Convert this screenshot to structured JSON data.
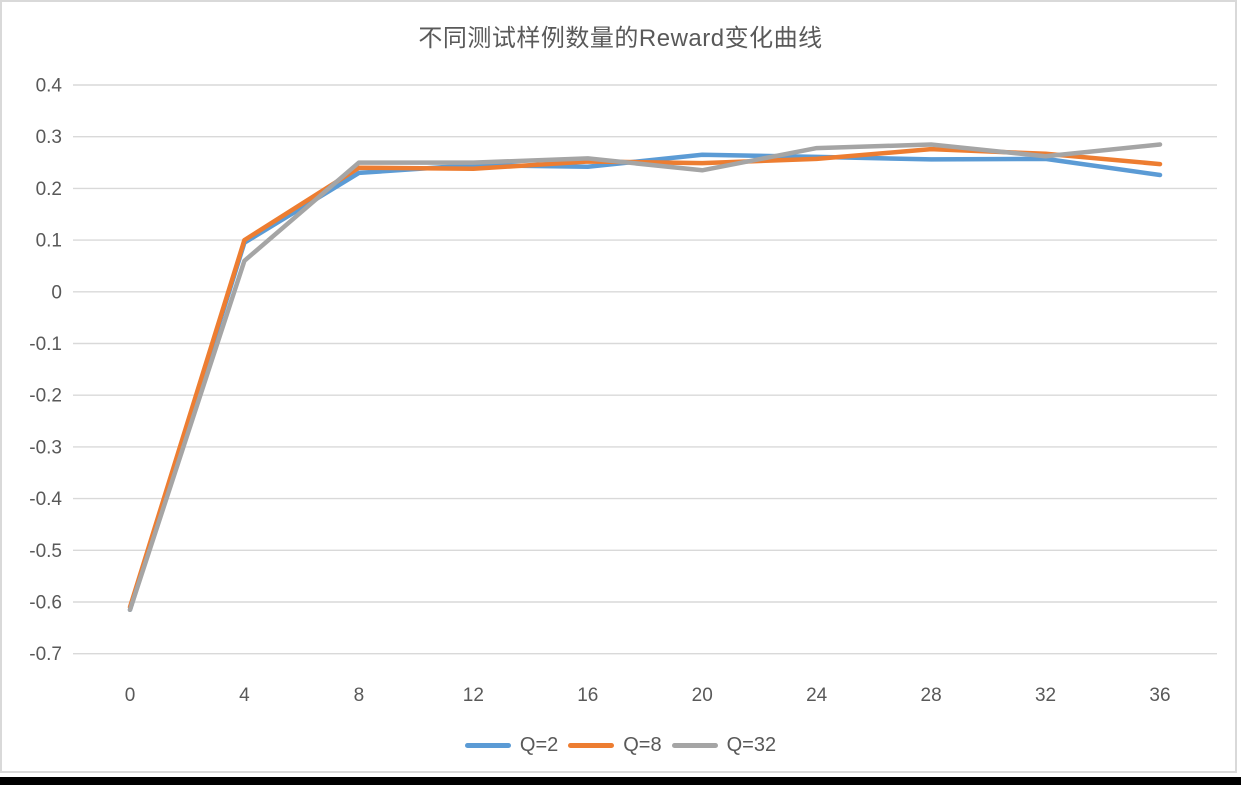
{
  "chart_data": {
    "type": "line",
    "title": "不同测试样例数量的Reward变化曲线",
    "xlabel": "",
    "ylabel": "",
    "x": [
      0,
      4,
      8,
      12,
      16,
      20,
      24,
      28,
      32,
      36
    ],
    "x_tick_labels": [
      "0",
      "4",
      "8",
      "12",
      "16",
      "20",
      "24",
      "28",
      "32",
      "36"
    ],
    "series": [
      {
        "name": "Q=2",
        "color": "#5B9BD5",
        "values": [
          -0.615,
          0.095,
          0.23,
          0.245,
          0.242,
          0.265,
          0.261,
          0.256,
          0.257,
          0.226
        ]
      },
      {
        "name": "Q=8",
        "color": "#ED7D31",
        "values": [
          -0.61,
          0.1,
          0.24,
          0.238,
          0.252,
          0.249,
          0.257,
          0.276,
          0.267,
          0.247
        ]
      },
      {
        "name": "Q=32",
        "color": "#A5A5A5",
        "values": [
          -0.615,
          0.06,
          0.25,
          0.25,
          0.258,
          0.235,
          0.278,
          0.285,
          0.262,
          0.285
        ]
      }
    ],
    "xlim": [
      0,
      36
    ],
    "ylim": [
      -0.7,
      0.4
    ],
    "ytick_step": 0.1,
    "y_tick_labels": [
      "0.4",
      "0.3",
      "0.2",
      "0.1",
      "0",
      "-0.1",
      "-0.2",
      "-0.3",
      "-0.4",
      "-0.5",
      "-0.6",
      "-0.7"
    ],
    "grid": "horizontal",
    "legend_position": "bottom-center",
    "line_width": 4.5
  },
  "style": {
    "axis_text_color": "#595959",
    "title_color": "#595959",
    "gridline_color": "#d9d9d9",
    "frame_border_color": "#d9d9d9",
    "background_color": "#ffffff",
    "bottom_bar_color": "#000000"
  }
}
